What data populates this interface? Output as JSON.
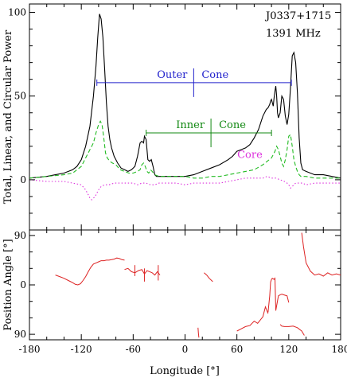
{
  "chart_data": [
    {
      "type": "line",
      "panel": "top",
      "pulsar": "J0337+1715",
      "frequency": "1391 MHz",
      "ylabel": "Total, Linear, and Circular Power",
      "xlim": [
        -180,
        180
      ],
      "ylim": [
        -30,
        105
      ],
      "yticks": [
        0,
        50,
        100
      ],
      "colors": {
        "total": "#000000",
        "linear": "#22bb22",
        "circular": "#dd33dd",
        "outer": "#2222cc",
        "inner": "#118811"
      },
      "series": [
        {
          "key": "total",
          "style": "solid",
          "x": [
            -180,
            -160,
            -150,
            -140,
            -130,
            -125,
            -120,
            -115,
            -110,
            -106,
            -103,
            -101,
            -99,
            -97,
            -95,
            -93,
            -91,
            -89,
            -87,
            -85,
            -82,
            -78,
            -74,
            -70,
            -66,
            -62,
            -58,
            -55,
            -52,
            -50,
            -48,
            -47,
            -45,
            -44,
            -43,
            -41,
            -39,
            -37,
            -35,
            -33,
            -30,
            -25,
            -20,
            -10,
            0,
            10,
            20,
            30,
            40,
            50,
            55,
            60,
            65,
            70,
            75,
            80,
            85,
            90,
            94,
            96,
            98,
            99,
            100,
            101,
            102,
            103,
            104,
            105,
            106,
            107,
            108,
            110,
            112,
            114,
            116,
            118,
            120,
            122,
            124,
            126,
            128,
            130,
            132,
            134,
            136,
            140,
            150,
            160,
            170,
            180
          ],
          "y": [
            1,
            2,
            3,
            4,
            6,
            8,
            12,
            20,
            32,
            50,
            68,
            85,
            99,
            96,
            85,
            66,
            46,
            32,
            24,
            19,
            14,
            10,
            7,
            6,
            5,
            6,
            8,
            14,
            22,
            23,
            22,
            26,
            24,
            18,
            12,
            11,
            12,
            8,
            3,
            2,
            2,
            2,
            2,
            2,
            2,
            3,
            5,
            7,
            9,
            12,
            14,
            17,
            18,
            19,
            21,
            25,
            30,
            38,
            42,
            43,
            45,
            47,
            48,
            46,
            44,
            49,
            53,
            56,
            50,
            40,
            37,
            40,
            50,
            48,
            38,
            33,
            39,
            55,
            74,
            76,
            70,
            52,
            25,
            10,
            6,
            5,
            3,
            3,
            2,
            1
          ]
        },
        {
          "key": "linear",
          "style": "dashed",
          "x": [
            -180,
            -160,
            -140,
            -130,
            -120,
            -115,
            -110,
            -106,
            -103,
            -100,
            -98,
            -96,
            -94,
            -92,
            -90,
            -87,
            -84,
            -80,
            -75,
            -70,
            -65,
            -60,
            -55,
            -52,
            -50,
            -48,
            -46,
            -44,
            -42,
            -40,
            -38,
            -35,
            -30,
            -20,
            -10,
            0,
            10,
            20,
            30,
            40,
            50,
            60,
            70,
            80,
            90,
            95,
            100,
            104,
            106,
            108,
            110,
            112,
            114,
            116,
            118,
            120,
            122,
            124,
            126,
            128,
            130,
            132,
            134,
            136,
            140,
            150,
            160,
            170,
            180
          ],
          "y": [
            1,
            2,
            3,
            4,
            8,
            13,
            18,
            22,
            28,
            33,
            35,
            33,
            25,
            16,
            13,
            11,
            10,
            9,
            6,
            5,
            4,
            4,
            5,
            6,
            9,
            10,
            8,
            5,
            4,
            6,
            5,
            3,
            2,
            2,
            2,
            2,
            1,
            1,
            2,
            2,
            3,
            4,
            5,
            6,
            9,
            11,
            13,
            17,
            20,
            18,
            14,
            10,
            8,
            12,
            18,
            26,
            27,
            20,
            12,
            8,
            5,
            3,
            2,
            2,
            2,
            1,
            1,
            1,
            1
          ]
        },
        {
          "key": "circular",
          "style": "dotted",
          "x": [
            -180,
            -160,
            -140,
            -130,
            -120,
            -115,
            -112,
            -110,
            -108,
            -106,
            -104,
            -102,
            -100,
            -97,
            -93,
            -88,
            -82,
            -75,
            -68,
            -60,
            -55,
            -50,
            -45,
            -40,
            -35,
            -30,
            -20,
            -10,
            0,
            10,
            20,
            30,
            40,
            50,
            60,
            70,
            80,
            90,
            95,
            100,
            105,
            110,
            115,
            118,
            120,
            122,
            124,
            126,
            128,
            130,
            133,
            136,
            140,
            150,
            160,
            170,
            180
          ],
          "y": [
            0,
            -1,
            -1,
            -2,
            -3,
            -6,
            -9,
            -11,
            -12,
            -11,
            -10,
            -8,
            -6,
            -4,
            -3,
            -3,
            -2,
            -2,
            -2,
            -2,
            -3,
            -2,
            -2,
            -3,
            -3,
            -2,
            -2,
            -2,
            -3,
            -2,
            -2,
            -2,
            -2,
            -1,
            0,
            1,
            1,
            1,
            2,
            1,
            1,
            0,
            -1,
            -2,
            -3,
            -5,
            -4,
            -3,
            -2,
            -2,
            -2,
            -2,
            -3,
            -2,
            -2,
            -2,
            -2
          ]
        }
      ],
      "annotations": [
        {
          "text": "Core",
          "x": 75,
          "y": 13,
          "color_key": "circular"
        }
      ],
      "cones": [
        {
          "label_left": "Outer",
          "label_right": "Cone",
          "x_start": -102,
          "x_end": 123,
          "y": 58,
          "center_x": 10,
          "color_key": "outer"
        },
        {
          "label_left": "Inner",
          "label_right": "Cone",
          "x_start": -45,
          "x_end": 100,
          "y": 28,
          "center_x": 30,
          "color_key": "inner"
        }
      ]
    },
    {
      "type": "scatter",
      "panel": "bottom",
      "ylabel": "Position Angle [°]",
      "xlabel": "Longitude [°]",
      "xlim": [
        -180,
        180
      ],
      "xticks": [
        -180,
        -120,
        -60,
        0,
        60,
        120,
        180
      ],
      "ylim": [
        -100,
        100
      ],
      "yticks": [
        90,
        0,
        -90
      ],
      "ytick_labels": [
        "90",
        "0",
        "90"
      ],
      "color": "#dd2222",
      "segments": [
        {
          "x": [
            -150,
            -145,
            -140,
            -135,
            -130,
            -127,
            -124,
            -121,
            -118,
            -115,
            -112,
            -109,
            -106,
            -103,
            -100,
            -97,
            -94,
            -91,
            -88,
            -85,
            -82,
            -79,
            -76,
            -73,
            -70
          ],
          "y": [
            18,
            15,
            12,
            8,
            4,
            1,
            0,
            2,
            8,
            15,
            24,
            32,
            38,
            40,
            42,
            44,
            44,
            45,
            45,
            46,
            47,
            49,
            48,
            46,
            45
          ]
        },
        {
          "x": [
            -70,
            -66,
            -62,
            -58,
            -54,
            -50,
            -47,
            -44,
            -41,
            -38,
            -35,
            -32,
            -29
          ],
          "y": [
            28,
            30,
            24,
            22,
            26,
            28,
            20,
            26,
            24,
            22,
            18,
            24,
            18
          ]
        },
        {
          "x": [
            22,
            25,
            28,
            32
          ],
          "y": [
            22,
            18,
            12,
            6
          ]
        },
        {
          "x": [
            15,
            15.5,
            16
          ],
          "y": [
            -78,
            -88,
            -96
          ]
        },
        {
          "x": [
            60,
            65,
            70,
            75,
            80,
            84,
            87,
            90,
            93,
            96
          ],
          "y": [
            -84,
            -80,
            -76,
            -74,
            -66,
            -70,
            -64,
            -58,
            -40,
            -52
          ]
        },
        {
          "x": [
            96,
            98,
            99,
            100,
            101,
            102,
            103,
            104,
            105
          ],
          "y": [
            -50,
            -20,
            5,
            10,
            12,
            11,
            10,
            12,
            -45
          ]
        },
        {
          "x": [
            105,
            108,
            110,
            112,
            114,
            116,
            118,
            120
          ],
          "y": [
            -47,
            -20,
            -18,
            -17,
            -18,
            -19,
            -20,
            -32
          ]
        },
        {
          "x": [
            110,
            112,
            115,
            120,
            125,
            130,
            135,
            138
          ],
          "y": [
            -72,
            -75,
            -76,
            -76,
            -75,
            -78,
            -84,
            -92
          ]
        },
        {
          "x": [
            135,
            137,
            140,
            145,
            150,
            155,
            160,
            165,
            170,
            175,
            180
          ],
          "y": [
            95,
            70,
            40,
            25,
            18,
            20,
            16,
            22,
            18,
            20,
            18
          ]
        }
      ],
      "error_bars": [
        {
          "x": -58,
          "y": 26,
          "err": 10
        },
        {
          "x": -47,
          "y": 18,
          "err": 12
        },
        {
          "x": -31,
          "y": 22,
          "err": 14
        }
      ]
    }
  ]
}
